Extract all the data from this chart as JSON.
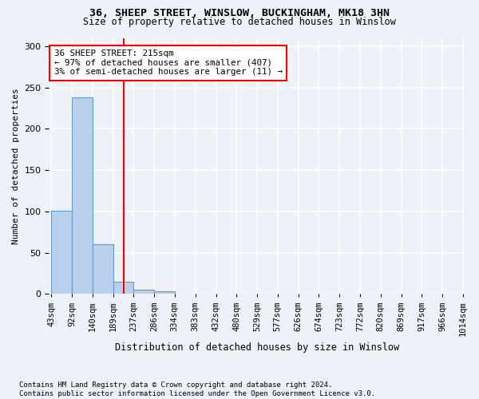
{
  "title1": "36, SHEEP STREET, WINSLOW, BUCKINGHAM, MK18 3HN",
  "title2": "Size of property relative to detached houses in Winslow",
  "xlabel": "Distribution of detached houses by size in Winslow",
  "ylabel": "Number of detached properties",
  "footnote": "Contains HM Land Registry data © Crown copyright and database right 2024.\nContains public sector information licensed under the Open Government Licence v3.0.",
  "bin_labels": [
    "43sqm",
    "92sqm",
    "140sqm",
    "189sqm",
    "237sqm",
    "286sqm",
    "334sqm",
    "383sqm",
    "432sqm",
    "480sqm",
    "529sqm",
    "577sqm",
    "626sqm",
    "674sqm",
    "723sqm",
    "772sqm",
    "820sqm",
    "869sqm",
    "917sqm",
    "966sqm",
    "1014sqm"
  ],
  "bin_edges": [
    43,
    92,
    140,
    189,
    237,
    286,
    334,
    383,
    432,
    480,
    529,
    577,
    626,
    674,
    723,
    772,
    820,
    869,
    917,
    966,
    1014
  ],
  "bar_values": [
    101,
    238,
    60,
    15,
    5,
    3,
    0,
    0,
    0,
    0,
    0,
    0,
    0,
    0,
    0,
    0,
    0,
    0,
    0,
    0
  ],
  "bar_color": "#b8d0ea",
  "bar_edge_color": "#6699cc",
  "property_size_x": 215,
  "vline_color": "red",
  "annotation_text": "36 SHEEP STREET: 215sqm\n← 97% of detached houses are smaller (407)\n3% of semi-detached houses are larger (11) →",
  "annotation_box_color": "white",
  "annotation_box_edge": "red",
  "ylim": [
    0,
    310
  ],
  "xlim_left": 43,
  "xlim_right": 1014,
  "background_color": "#eef2f8",
  "title1_fontsize": 9.5,
  "title2_fontsize": 8.5,
  "ylabel_fontsize": 8,
  "xlabel_fontsize": 8.5,
  "tick_fontsize": 7.5,
  "footnote_fontsize": 6.5,
  "annot_fontsize": 7.8
}
